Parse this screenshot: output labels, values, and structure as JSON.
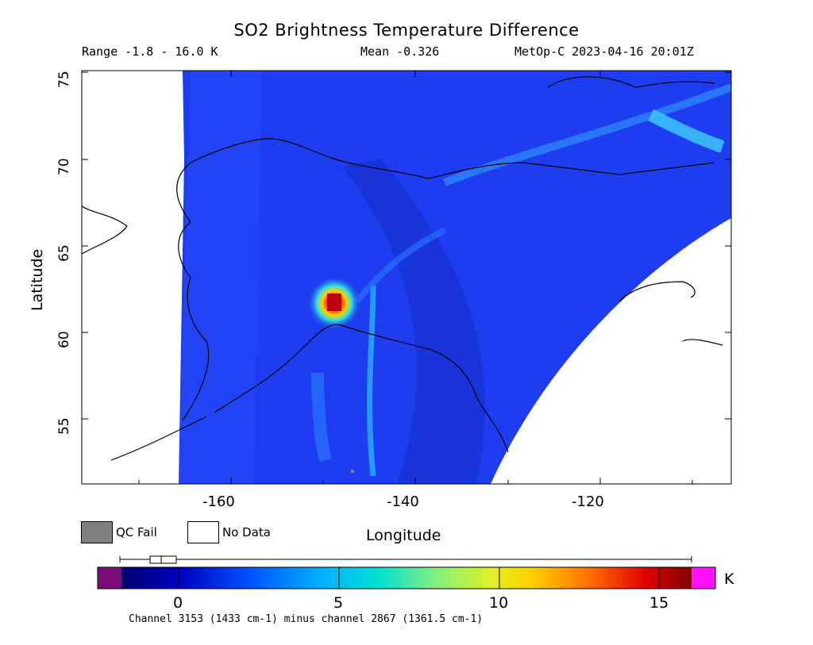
{
  "header": {
    "title": "SO2 Brightness Temperature Difference",
    "range": "Range -1.8 - 16.0 K",
    "mean": "Mean -0.326",
    "satellite_time": "MetOp-C 2023-04-16 20:01Z"
  },
  "map": {
    "y_axis_label": "Latitude",
    "x_axis_label": "Longitude",
    "lat_ticks": [
      "55",
      "60",
      "65",
      "70",
      "75"
    ],
    "lon_ticks": [
      "-160",
      "-140",
      "-120"
    ],
    "lat_range": [
      51,
      75
    ],
    "lon_range": [
      -176,
      -107
    ],
    "plume_peak": {
      "lon": -148,
      "lat": 61.7,
      "value_K": 16.0
    },
    "colors": {
      "background": "#1e3df0",
      "no_data": "#ffffff",
      "qc_fail": "#808080"
    }
  },
  "legend": {
    "qc_fail_label": "QC Fail",
    "no_data_label": "No Data"
  },
  "colorbar": {
    "ticks": [
      "0",
      "5",
      "10",
      "15"
    ],
    "tick_values": [
      0,
      5,
      10,
      15
    ],
    "range": [
      -1.8,
      16.0
    ],
    "unit": "K",
    "caption": "Channel 3153 (1433 cm-1) minus channel 2867 (1361.5 cm-1)",
    "underflow_color": "#7a0f7a",
    "overflow_color": "#ff10ff"
  }
}
